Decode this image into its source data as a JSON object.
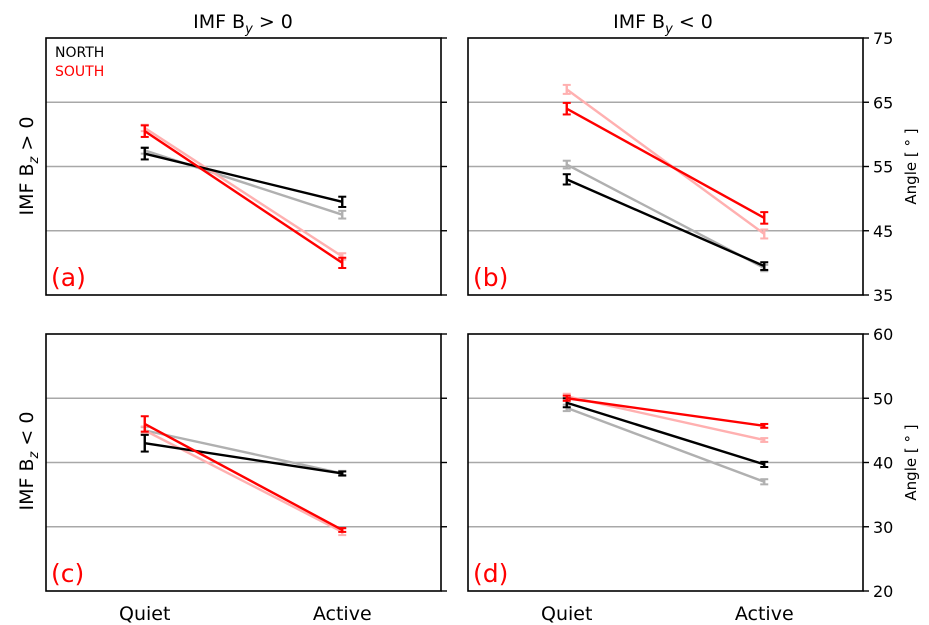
{
  "colors": {
    "north": "#000000",
    "north_faint": "#b0b0b0",
    "south": "#ff0000",
    "south_faint": "#ffb0b0",
    "grid": "#a8a8a8"
  },
  "legend": {
    "north": "NORTH",
    "south": "SOUTH"
  },
  "columns": [
    {
      "title": "IMF B",
      "sub": "y",
      "rel": " > 0"
    },
    {
      "title": "IMF B",
      "sub": "y",
      "rel": " < 0"
    }
  ],
  "rows": [
    {
      "title": "IMF B",
      "sub": "z",
      "rel": " > 0"
    },
    {
      "title": "IMF B",
      "sub": "z",
      "rel": " < 0"
    }
  ],
  "chart_data": [
    {
      "type": "line",
      "label": "(a)",
      "categories": [
        "Quiet",
        "Active"
      ],
      "ylim": [
        35,
        75
      ],
      "yticks": [
        35,
        45,
        55,
        65,
        75
      ],
      "grid_y": [
        45,
        55,
        65
      ],
      "ylabel": "Angle [ ° ]",
      "yaxis_side": "right",
      "show_ytick_labels": false,
      "series": [
        {
          "name": "NORTH",
          "role": "north_faint",
          "values": [
            57.5,
            47.5
          ],
          "err": [
            0.5,
            0.6
          ]
        },
        {
          "name": "SOUTH",
          "role": "south_faint",
          "values": [
            61.0,
            41.0
          ],
          "err": [
            0.5,
            0.5
          ]
        },
        {
          "name": "NORTH",
          "role": "north",
          "values": [
            57.0,
            49.5
          ],
          "err": [
            0.9,
            0.8
          ]
        },
        {
          "name": "SOUTH",
          "role": "south",
          "values": [
            60.5,
            40.0
          ],
          "err": [
            0.9,
            0.8
          ]
        }
      ]
    },
    {
      "type": "line",
      "label": "(b)",
      "categories": [
        "Quiet",
        "Active"
      ],
      "ylim": [
        35,
        75
      ],
      "yticks": [
        35,
        45,
        55,
        65,
        75
      ],
      "grid_y": [
        45,
        55,
        65
      ],
      "ylabel": "Angle [ ° ]",
      "yaxis_side": "right",
      "show_ytick_labels": true,
      "series": [
        {
          "name": "NORTH",
          "role": "north_faint",
          "values": [
            55.3,
            39.2
          ],
          "err": [
            0.6,
            0.5
          ]
        },
        {
          "name": "SOUTH",
          "role": "south_faint",
          "values": [
            67.0,
            44.5
          ],
          "err": [
            0.7,
            0.7
          ]
        },
        {
          "name": "NORTH",
          "role": "north",
          "values": [
            53.0,
            39.5
          ],
          "err": [
            0.8,
            0.6
          ]
        },
        {
          "name": "SOUTH",
          "role": "south",
          "values": [
            64.0,
            47.0
          ],
          "err": [
            0.9,
            0.9
          ]
        }
      ]
    },
    {
      "type": "line",
      "label": "(c)",
      "categories": [
        "Quiet",
        "Active"
      ],
      "ylim": [
        20,
        60
      ],
      "yticks": [
        20,
        30,
        40,
        50,
        60
      ],
      "grid_y": [
        30,
        40,
        50
      ],
      "ylabel": "Angle [ ° ]",
      "yaxis_side": "right",
      "show_ytick_labels": false,
      "series": [
        {
          "name": "NORTH",
          "role": "north_faint",
          "values": [
            45.0,
            38.3
          ],
          "err": [
            0.5,
            0.4
          ]
        },
        {
          "name": "SOUTH",
          "role": "south_faint",
          "values": [
            45.0,
            29.2
          ],
          "err": [
            0.6,
            0.5
          ]
        },
        {
          "name": "NORTH",
          "role": "north",
          "values": [
            43.0,
            38.3
          ],
          "err": [
            1.3,
            0.3
          ]
        },
        {
          "name": "SOUTH",
          "role": "south",
          "values": [
            46.0,
            29.5
          ],
          "err": [
            1.2,
            0.3
          ]
        }
      ]
    },
    {
      "type": "line",
      "label": "(d)",
      "categories": [
        "Quiet",
        "Active"
      ],
      "ylim": [
        20,
        60
      ],
      "yticks": [
        20,
        30,
        40,
        50,
        60
      ],
      "grid_y": [
        30,
        40,
        50
      ],
      "ylabel": "Angle [ ° ]",
      "yaxis_side": "right",
      "show_ytick_labels": true,
      "series": [
        {
          "name": "NORTH",
          "role": "north_faint",
          "values": [
            48.5,
            37.0
          ],
          "err": [
            0.5,
            0.4
          ]
        },
        {
          "name": "SOUTH",
          "role": "south_faint",
          "values": [
            50.3,
            43.5
          ],
          "err": [
            0.4,
            0.3
          ]
        },
        {
          "name": "NORTH",
          "role": "north",
          "values": [
            49.3,
            39.7
          ],
          "err": [
            0.7,
            0.4
          ]
        },
        {
          "name": "SOUTH",
          "role": "south",
          "values": [
            50.0,
            45.7
          ],
          "err": [
            0.4,
            0.3
          ]
        }
      ]
    }
  ]
}
